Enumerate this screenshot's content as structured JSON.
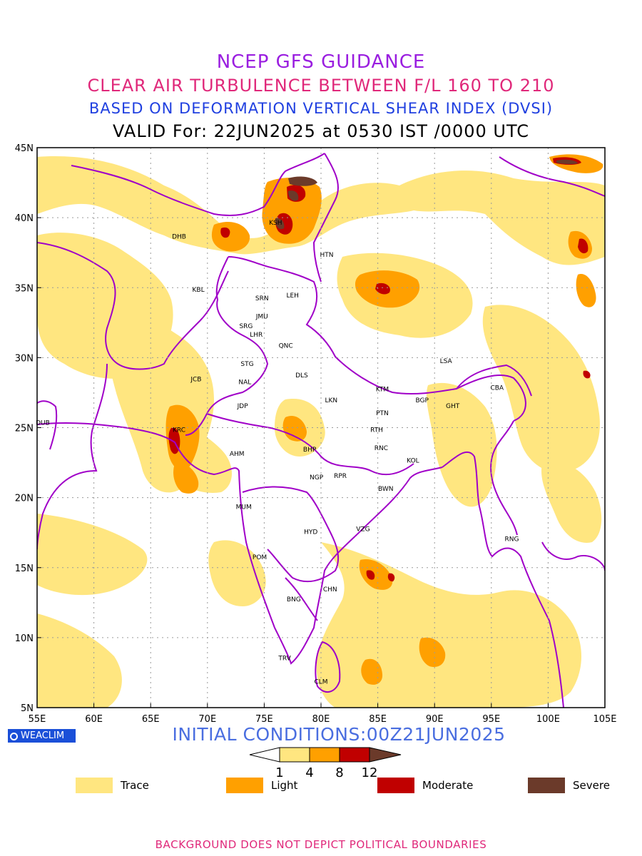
{
  "header": {
    "title": "NCEP GFS GUIDANCE",
    "subtitle": "CLEAR AIR TURBULENCE BETWEEN F/L 160 TO 210",
    "method": "BASED ON DEFORMATION VERTICAL SHEAR INDEX (DVSI)",
    "valid": "VALID For: 22JUN2025 at 0530 IST /0000 UTC"
  },
  "map": {
    "lon_ticks": [
      "55E",
      "60E",
      "65E",
      "70E",
      "75E",
      "80E",
      "85E",
      "90E",
      "95E",
      "100E",
      "105E"
    ],
    "lat_ticks": [
      "45N",
      "40N",
      "35N",
      "30N",
      "25N",
      "20N",
      "15N",
      "10N",
      "5N"
    ],
    "colors": {
      "trace": "#ffe680",
      "light": "#ffa000",
      "moderate": "#c00000",
      "severe": "#6b3a2a",
      "boundary": "#a000c8",
      "grid": "#9a9a9a"
    },
    "stations": [
      {
        "code": "KSH",
        "lon": 76.0,
        "lat": 39.5
      },
      {
        "code": "DHB",
        "lon": 67.5,
        "lat": 38.5
      },
      {
        "code": "HTN",
        "lon": 80.5,
        "lat": 37.2
      },
      {
        "code": "KBL",
        "lon": 69.2,
        "lat": 34.7
      },
      {
        "code": "SRN",
        "lon": 74.8,
        "lat": 34.1
      },
      {
        "code": "LEH",
        "lon": 77.5,
        "lat": 34.3
      },
      {
        "code": "JMU",
        "lon": 74.8,
        "lat": 32.8
      },
      {
        "code": "SRG",
        "lon": 73.4,
        "lat": 32.1
      },
      {
        "code": "LHR",
        "lon": 74.3,
        "lat": 31.5
      },
      {
        "code": "QNC",
        "lon": 76.9,
        "lat": 30.7
      },
      {
        "code": "STG",
        "lon": 73.5,
        "lat": 29.4
      },
      {
        "code": "DLS",
        "lon": 78.3,
        "lat": 28.6
      },
      {
        "code": "NAL",
        "lon": 73.3,
        "lat": 28.1
      },
      {
        "code": "JCB",
        "lon": 69.0,
        "lat": 28.3
      },
      {
        "code": "LSA",
        "lon": 91.0,
        "lat": 29.6
      },
      {
        "code": "KTM",
        "lon": 85.4,
        "lat": 27.6
      },
      {
        "code": "BGP",
        "lon": 88.9,
        "lat": 26.8
      },
      {
        "code": "GHT",
        "lon": 91.6,
        "lat": 26.4
      },
      {
        "code": "CBA",
        "lon": 95.5,
        "lat": 27.7
      },
      {
        "code": "JDP",
        "lon": 73.1,
        "lat": 26.4
      },
      {
        "code": "LKN",
        "lon": 80.9,
        "lat": 26.8
      },
      {
        "code": "PTN",
        "lon": 85.4,
        "lat": 25.9
      },
      {
        "code": "RTH",
        "lon": 84.9,
        "lat": 24.7
      },
      {
        "code": "RNC",
        "lon": 85.3,
        "lat": 23.4
      },
      {
        "code": "KRC",
        "lon": 67.5,
        "lat": 24.7
      },
      {
        "code": "DUB",
        "lon": 55.5,
        "lat": 25.2
      },
      {
        "code": "BHP",
        "lon": 79.0,
        "lat": 23.3
      },
      {
        "code": "AHM",
        "lon": 72.6,
        "lat": 23.0
      },
      {
        "code": "KOL",
        "lon": 88.1,
        "lat": 22.5
      },
      {
        "code": "NGP",
        "lon": 79.6,
        "lat": 21.3
      },
      {
        "code": "RPR",
        "lon": 81.7,
        "lat": 21.4
      },
      {
        "code": "BWN",
        "lon": 85.7,
        "lat": 20.5
      },
      {
        "code": "MUM",
        "lon": 73.2,
        "lat": 19.2
      },
      {
        "code": "HYD",
        "lon": 79.1,
        "lat": 17.4
      },
      {
        "code": "VZG",
        "lon": 83.7,
        "lat": 17.6
      },
      {
        "code": "RNG",
        "lon": 96.8,
        "lat": 16.9
      },
      {
        "code": "POM",
        "lon": 74.6,
        "lat": 15.6
      },
      {
        "code": "CHN",
        "lon": 80.8,
        "lat": 13.3
      },
      {
        "code": "BNG",
        "lon": 77.6,
        "lat": 12.6
      },
      {
        "code": "TRV",
        "lon": 76.8,
        "lat": 8.4
      },
      {
        "code": "CLM",
        "lon": 80.0,
        "lat": 6.7
      }
    ]
  },
  "badge": {
    "label": "WEACLIM"
  },
  "initial": "INITIAL CONDITIONS:00Z21JUN2025",
  "colorbar": {
    "ticks": [
      "1",
      "4",
      "8",
      "12"
    ]
  },
  "legend": [
    {
      "label": "Trace",
      "color": "#ffe680"
    },
    {
      "label": "Light",
      "color": "#ffa000"
    },
    {
      "label": "Moderate",
      "color": "#c00000"
    },
    {
      "label": "Severe",
      "color": "#6b3a2a"
    }
  ],
  "footer": "BACKGROUND DOES NOT DEPICT POLITICAL BOUNDARIES"
}
